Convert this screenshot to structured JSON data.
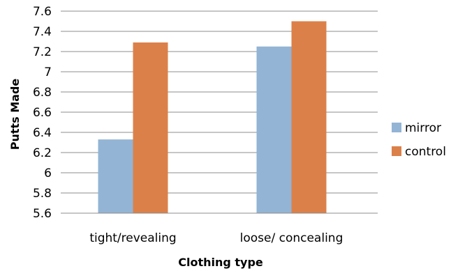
{
  "chart_data": {
    "type": "bar",
    "categories": [
      "tight/revealing",
      "loose/ concealing"
    ],
    "series": [
      {
        "name": "mirror",
        "values": [
          6.33,
          7.25
        ],
        "color": "#93b4d4"
      },
      {
        "name": "control",
        "values": [
          7.29,
          7.5
        ],
        "color": "#dc8049"
      }
    ],
    "xlabel": "Clothing type",
    "ylabel": "Putts Made",
    "ylim": [
      5.6,
      7.6
    ],
    "yticks": [
      "5.6",
      "5.8",
      "6",
      "6.2",
      "6.4",
      "6.6",
      "6.8",
      "7",
      "7.2",
      "7.4",
      "7.6"
    ],
    "grid": true,
    "legend_position": "right"
  }
}
